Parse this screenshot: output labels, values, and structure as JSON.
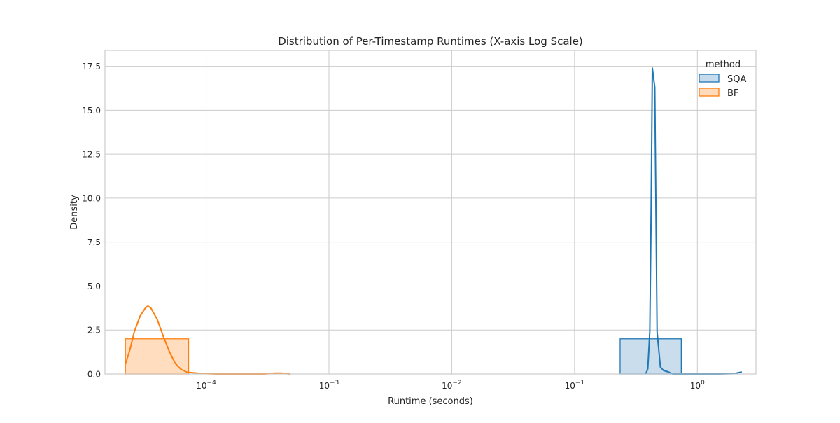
{
  "chart_data": {
    "type": "histogram-kde",
    "title": "Distribution of Per-Timestamp Runtimes (X-axis Log Scale)",
    "xlabel": "Runtime (seconds)",
    "ylabel": "Density",
    "x_scale": "log",
    "xlim": [
      1.5e-05,
      3.0
    ],
    "ylim": [
      0,
      18.4
    ],
    "grid": true,
    "x_ticks": [
      {
        "value": 0.0001,
        "base": "10",
        "exp": "−4"
      },
      {
        "value": 0.001,
        "base": "10",
        "exp": "−3"
      },
      {
        "value": 0.01,
        "base": "10",
        "exp": "−2"
      },
      {
        "value": 0.1,
        "base": "10",
        "exp": "−1"
      },
      {
        "value": 1,
        "base": "10",
        "exp": "0"
      }
    ],
    "y_ticks": [
      {
        "value": 0,
        "label": "0.0"
      },
      {
        "value": 2.5,
        "label": "2.5"
      },
      {
        "value": 5,
        "label": "5.0"
      },
      {
        "value": 7.5,
        "label": "7.5"
      },
      {
        "value": 10,
        "label": "10.0"
      },
      {
        "value": 12.5,
        "label": "12.5"
      },
      {
        "value": 15,
        "label": "15.0"
      },
      {
        "value": 17.5,
        "label": "17.5"
      }
    ],
    "legend": {
      "title": "method",
      "position": "top-right"
    },
    "series": [
      {
        "name": "SQA",
        "color": "#1f77b4",
        "fill": "#c6dbec",
        "bins": [
          {
            "x0": 0.235,
            "x1": 0.74,
            "height": 2.0
          },
          {
            "x0": 0.74,
            "x1": 2.3,
            "height": 0.0
          }
        ],
        "kde": [
          [
            0.38,
            0.0
          ],
          [
            0.395,
            0.3
          ],
          [
            0.41,
            2.4
          ],
          [
            0.42,
            9.0
          ],
          [
            0.43,
            17.4
          ],
          [
            0.45,
            16.3
          ],
          [
            0.47,
            2.4
          ],
          [
            0.5,
            0.4
          ],
          [
            0.53,
            0.2
          ],
          [
            0.58,
            0.12
          ],
          [
            0.63,
            0.0
          ],
          [
            0.9,
            0.0
          ],
          [
            1.5,
            0.0
          ],
          [
            2.0,
            0.02
          ],
          [
            2.3,
            0.12
          ]
        ]
      },
      {
        "name": "BF",
        "color": "#ff7f0e",
        "fill": "#ffdbbb",
        "bins": [
          {
            "x0": 2.2e-05,
            "x1": 7.2e-05,
            "height": 2.0
          },
          {
            "x0": 7.2e-05,
            "x1": 0.0004,
            "height": 0.0
          }
        ],
        "kde": [
          [
            2.2e-05,
            0.55
          ],
          [
            2.4e-05,
            1.4
          ],
          [
            2.6e-05,
            2.4
          ],
          [
            2.9e-05,
            3.3
          ],
          [
            3.2e-05,
            3.75
          ],
          [
            3.35e-05,
            3.87
          ],
          [
            3.55e-05,
            3.75
          ],
          [
            4e-05,
            3.1
          ],
          [
            4.5e-05,
            2.1
          ],
          [
            5e-05,
            1.3
          ],
          [
            5.6e-05,
            0.6
          ],
          [
            6.2e-05,
            0.28
          ],
          [
            7e-05,
            0.1
          ],
          [
            9e-05,
            0.03
          ],
          [
            0.00012,
            0.0
          ],
          [
            0.0003,
            0.0
          ],
          [
            0.00036,
            0.05
          ],
          [
            0.00041,
            0.05
          ],
          [
            0.00048,
            0.0
          ]
        ]
      }
    ]
  }
}
